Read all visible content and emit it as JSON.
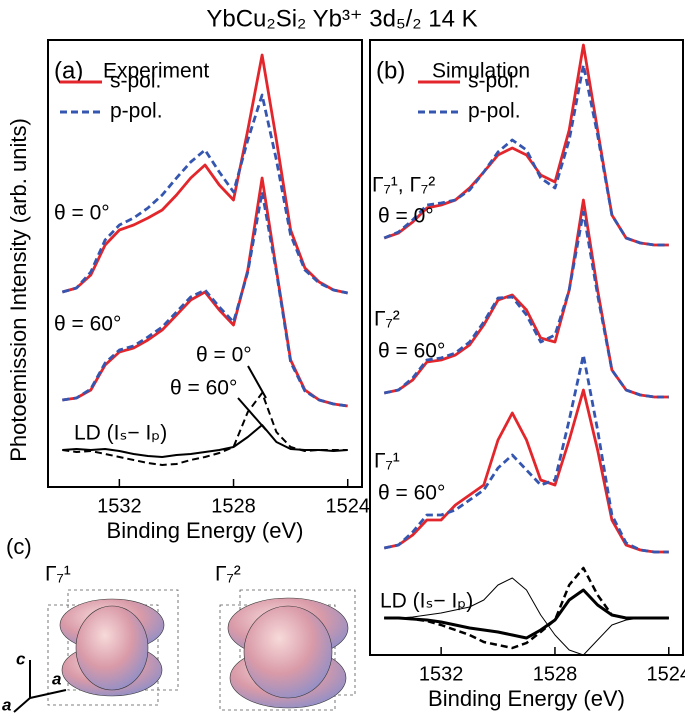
{
  "title": "YbCu₂Si₂  Yb³⁺ 3d₅/₂ 14 K",
  "ylabel": "Photoemission Intensity (arb. units)",
  "chart_data": [
    {
      "type": "line",
      "panel": "(a)",
      "title": "Experiment",
      "xlabel": "Binding Energy (eV)",
      "x": [
        1534,
        1533.5,
        1533,
        1532.5,
        1532,
        1531.5,
        1531,
        1530.5,
        1530,
        1529.5,
        1529,
        1528.5,
        1528,
        1527.5,
        1527,
        1526.5,
        1526,
        1525.5,
        1525,
        1524.5,
        1524
      ],
      "xlim": [
        1534.5,
        1523.5
      ],
      "xticks": [
        1532,
        1528,
        1524
      ],
      "ylim": [
        0,
        447
      ],
      "legend": "upper left",
      "series": [
        {
          "name": "s-pol.",
          "color": "#e3262c",
          "linestyle": "solid",
          "values": [
            195,
            199,
            212,
            242,
            257,
            262,
            269,
            277,
            292,
            309,
            322,
            302,
            287,
            357,
            432,
            347,
            257,
            219,
            205,
            197,
            194
          ]
        },
        {
          "name": "p-pol.",
          "color": "#3556b0",
          "linestyle": "dashed",
          "values": [
            195,
            199,
            215,
            247,
            262,
            269,
            279,
            292,
            309,
            325,
            337,
            315,
            295,
            347,
            392,
            327,
            252,
            217,
            204,
            197,
            194
          ]
        },
        {
          "color": "#e3262c",
          "linestyle": "solid",
          "values": [
            87,
            89,
            97,
            122,
            135,
            139,
            147,
            157,
            172,
            187,
            195,
            177,
            162,
            217,
            309,
            217,
            127,
            97,
            87,
            83,
            81
          ]
        },
        {
          "color": "#3556b0",
          "linestyle": "dashed",
          "values": [
            87,
            89,
            98,
            124,
            137,
            141,
            150,
            160,
            175,
            190,
            197,
            180,
            165,
            215,
            295,
            215,
            125,
            96,
            87,
            83,
            81
          ]
        },
        {
          "color": "#000000",
          "linestyle": "dashed",
          "linewidth": 2,
          "values": [
            37,
            35,
            36,
            33,
            30,
            27,
            24,
            22,
            23,
            27,
            30,
            34,
            40,
            75,
            94,
            55,
            40,
            36,
            37,
            37,
            37
          ]
        },
        {
          "color": "#000000",
          "linestyle": "solid",
          "linewidth": 2,
          "values": [
            37,
            38,
            37,
            38,
            36,
            33,
            31,
            30,
            32,
            33,
            35,
            37,
            40,
            50,
            62,
            45,
            38,
            37,
            37,
            36,
            37
          ]
        }
      ],
      "annotations": [
        "θ = 0°",
        "θ = 60°",
        "θ = 0°",
        "θ = 60°",
        "LD (Iₛ− Iₚ)"
      ]
    },
    {
      "type": "line",
      "panel": "(b)",
      "title": "Simulation",
      "xlabel": "Binding Energy (eV)",
      "x": [
        1534,
        1533.5,
        1533,
        1532.5,
        1532,
        1531.5,
        1531,
        1530.5,
        1530,
        1529.5,
        1529,
        1528.5,
        1528,
        1527.5,
        1527,
        1526.5,
        1526,
        1525.5,
        1525,
        1524.5,
        1524
      ],
      "xlim": [
        1534.5,
        1523.5
      ],
      "xticks": [
        1532,
        1528,
        1524
      ],
      "ylim": [
        -15,
        600
      ],
      "legend": "upper left",
      "series": [
        {
          "name": "s-pol.",
          "color": "#e3262c",
          "linestyle": "solid",
          "values": [
            402,
            407,
            418,
            432,
            435,
            440,
            452,
            468,
            485,
            492,
            485,
            465,
            458,
            510,
            595,
            510,
            425,
            402,
            397,
            395,
            395
          ]
        },
        {
          "name": "p-pol.",
          "color": "#3556b0",
          "linestyle": "dashed",
          "values": [
            402,
            408,
            420,
            435,
            437,
            440,
            450,
            468,
            488,
            500,
            490,
            462,
            452,
            500,
            575,
            505,
            425,
            402,
            397,
            395,
            395
          ]
        },
        {
          "color": "#e3262c",
          "linestyle": "solid",
          "values": [
            247,
            250,
            260,
            278,
            280,
            285,
            295,
            315,
            340,
            345,
            330,
            302,
            298,
            350,
            440,
            350,
            270,
            250,
            245,
            243,
            243
          ]
        },
        {
          "color": "#3556b0",
          "linestyle": "dashed",
          "values": [
            247,
            250,
            262,
            280,
            282,
            287,
            298,
            318,
            342,
            343,
            325,
            298,
            305,
            350,
            428,
            345,
            270,
            250,
            245,
            243,
            243
          ]
        },
        {
          "color": "#e3262c",
          "linestyle": "solid",
          "values": [
            92,
            95,
            105,
            120,
            120,
            135,
            145,
            155,
            200,
            227,
            200,
            160,
            155,
            200,
            250,
            190,
            120,
            95,
            90,
            88,
            88
          ]
        },
        {
          "color": "#3556b0",
          "linestyle": "dashed",
          "values": [
            92,
            95,
            108,
            125,
            125,
            130,
            140,
            150,
            172,
            185,
            170,
            155,
            160,
            220,
            285,
            210,
            125,
            97,
            90,
            88,
            88
          ]
        },
        {
          "color": "#000000",
          "linestyle": "solid",
          "linewidth": 1,
          "values": [
            22,
            22,
            23,
            25,
            27,
            30,
            33,
            40,
            55,
            62,
            50,
            25,
            5,
            -10,
            -15,
            0,
            15,
            20,
            22,
            22,
            22
          ]
        },
        {
          "color": "#000000",
          "linestyle": "solid",
          "linewidth": 3,
          "values": [
            22,
            22,
            21,
            20,
            18,
            15,
            12,
            10,
            8,
            5,
            2,
            10,
            20,
            40,
            50,
            35,
            25,
            22,
            22,
            22,
            22
          ]
        },
        {
          "color": "#000000",
          "linestyle": "dashed",
          "linewidth": 2.5,
          "values": [
            22,
            22,
            21,
            19,
            15,
            10,
            5,
            -2,
            -5,
            -8,
            -3,
            8,
            20,
            55,
            72,
            45,
            25,
            22,
            22,
            22,
            22
          ]
        }
      ],
      "annotations": [
        "Γ₇¹, Γ₇²",
        "θ = 0°",
        "Γ₇²",
        "θ = 60°",
        "Γ₇¹",
        "θ = 60°",
        "LD (Iₛ− Iₚ)"
      ]
    }
  ],
  "panel_c": {
    "label": "(c)",
    "orbitals": [
      "Γ₇¹",
      "Γ₇²"
    ],
    "axes": [
      "c",
      "a",
      "a"
    ]
  }
}
